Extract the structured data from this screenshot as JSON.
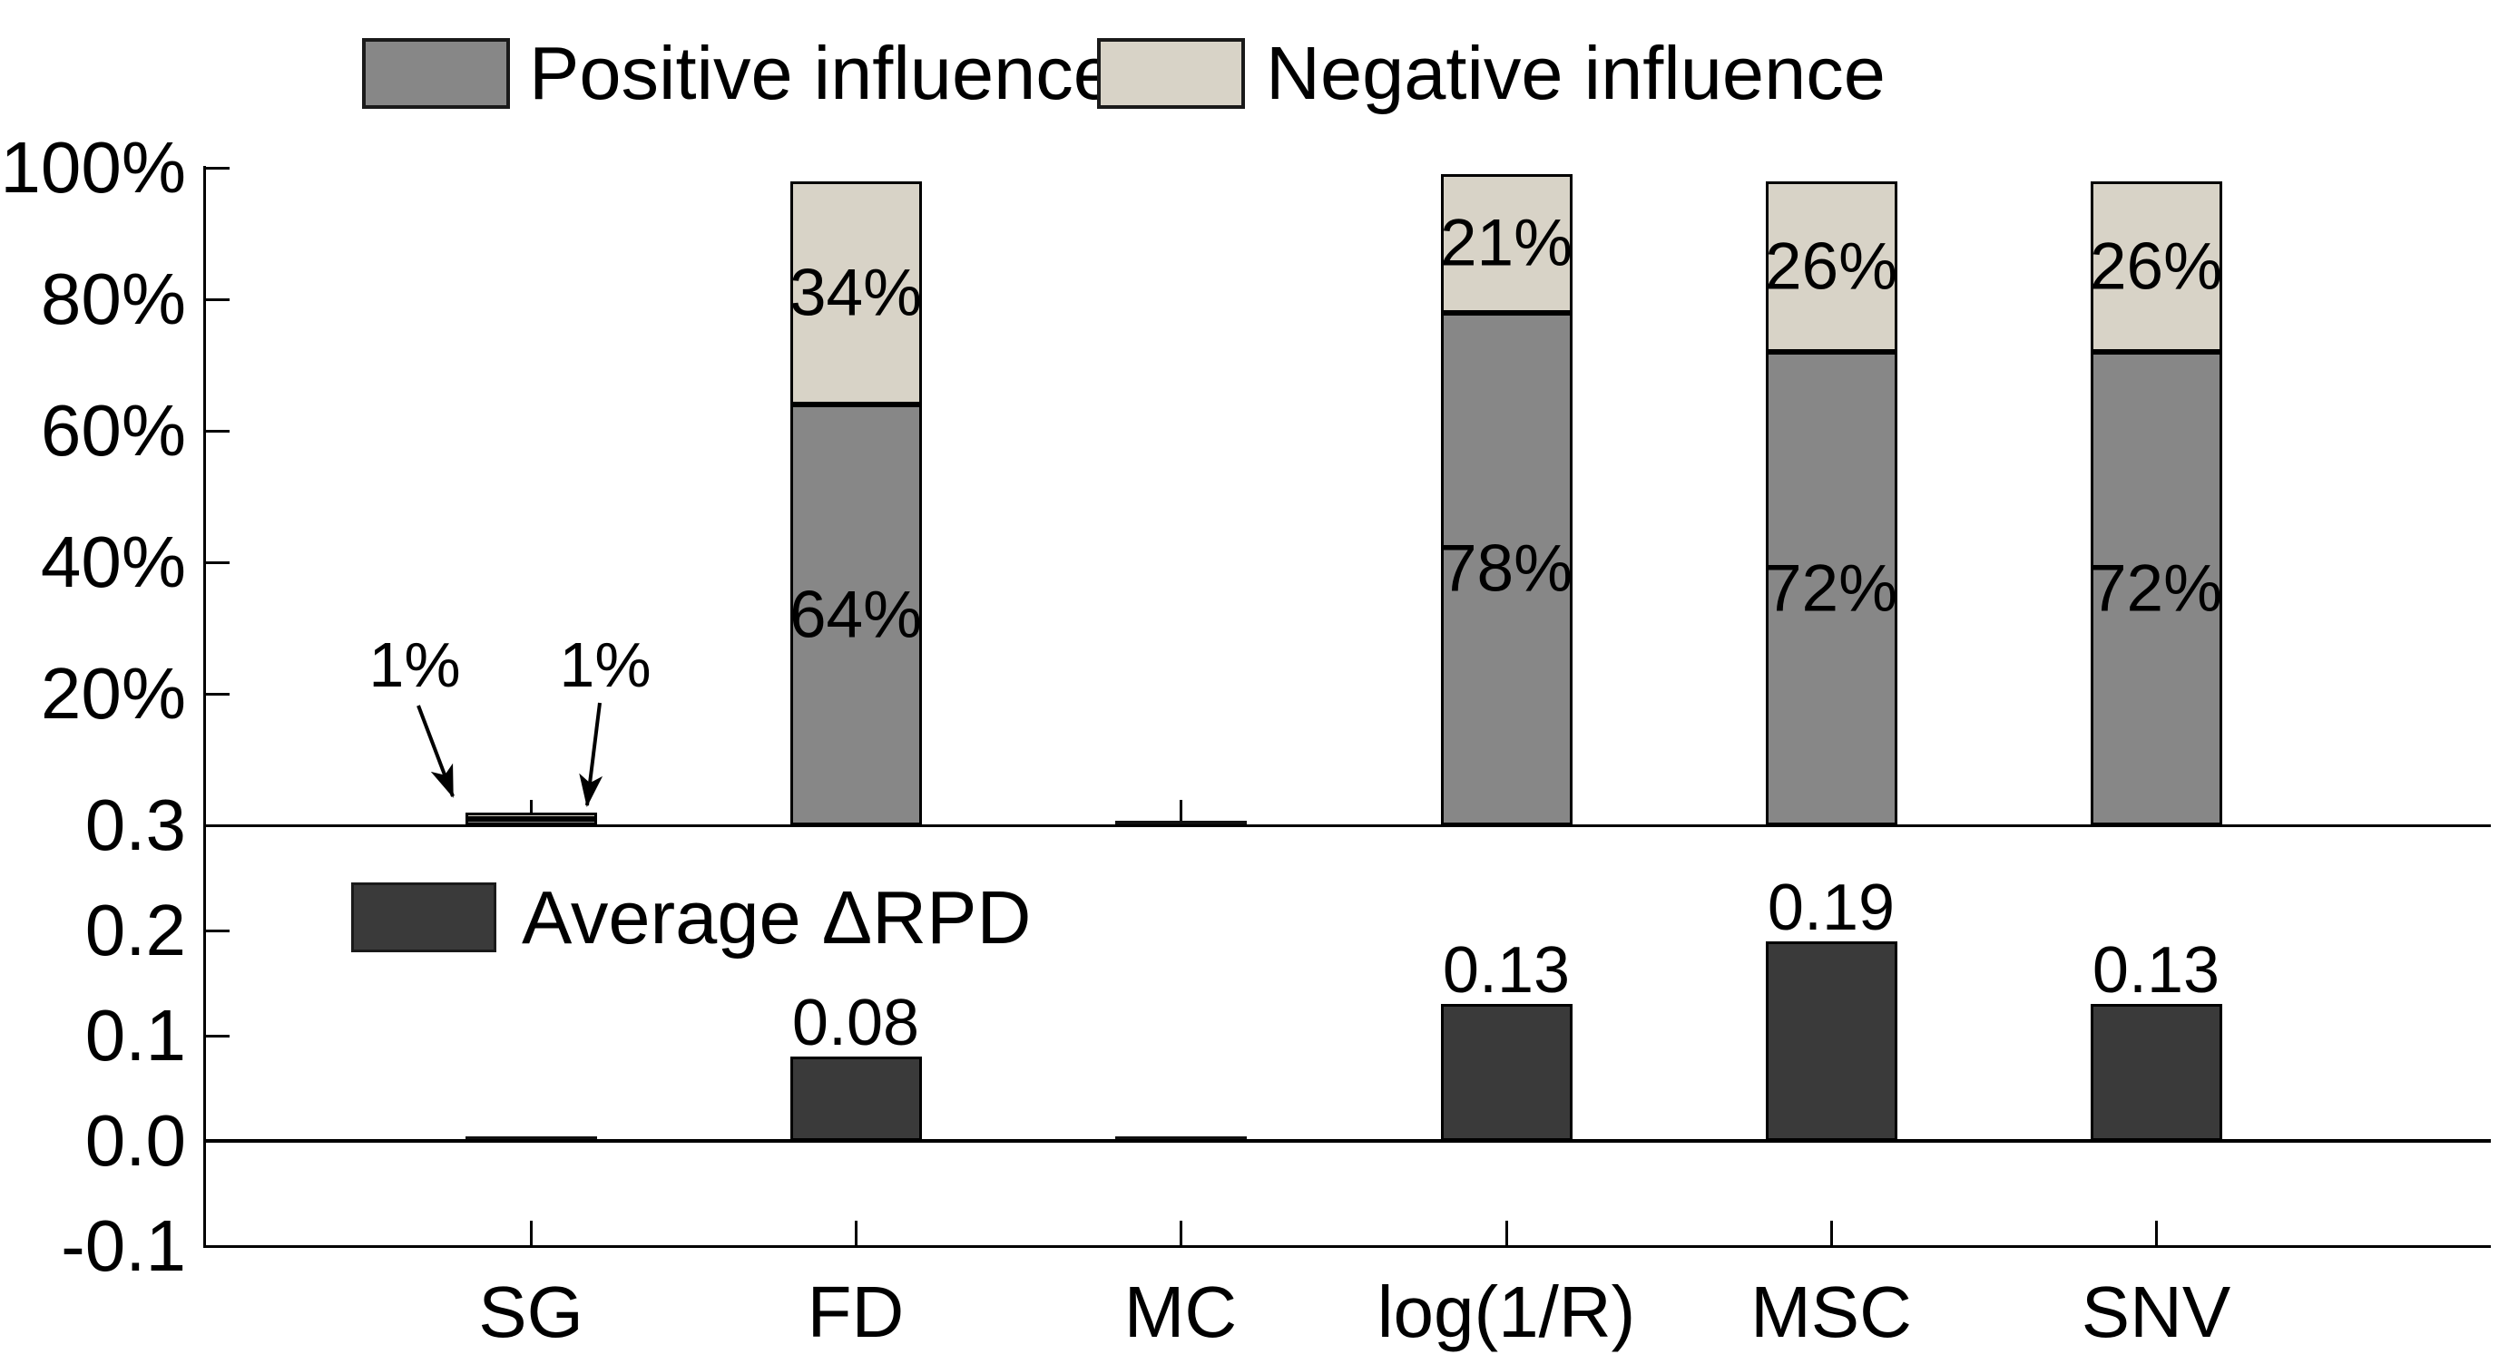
{
  "legend_top": {
    "items": [
      {
        "label": "Positive influence",
        "color": "#878787"
      },
      {
        "label": "Negative influence",
        "color": "#d8d3c7"
      }
    ]
  },
  "legend_bottom": {
    "label": "Average ΔRPD",
    "color": "#3a3a3a"
  },
  "chart_data": [
    {
      "type": "bar",
      "subtype": "stacked",
      "panel": "top",
      "categories": [
        "SG",
        "FD",
        "MC",
        "log(1/R)",
        "MSC",
        "SNV"
      ],
      "series": [
        {
          "name": "Positive influence",
          "color": "#878787",
          "values": [
            1,
            64,
            0,
            78,
            72,
            72
          ],
          "labels": [
            "",
            "64%",
            "",
            "78%",
            "72%",
            "72%"
          ]
        },
        {
          "name": "Negative influence",
          "color": "#d8d3c7",
          "values": [
            1,
            34,
            0,
            21,
            26,
            26
          ],
          "labels": [
            "",
            "34%",
            "",
            "21%",
            "26%",
            "26%"
          ]
        }
      ],
      "ytick_labels": [
        "20%",
        "40%",
        "60%",
        "80%",
        "100%"
      ],
      "ytick_values": [
        20,
        40,
        60,
        80,
        100
      ],
      "ylim": [
        0,
        100
      ],
      "grid": false,
      "legend_position": "top",
      "annotations": [
        {
          "text": "1%",
          "target": "SG negative segment"
        },
        {
          "text": "1%",
          "target": "SG positive segment"
        }
      ]
    },
    {
      "type": "bar",
      "panel": "bottom",
      "categories": [
        "SG",
        "FD",
        "MC",
        "log(1/R)",
        "MSC",
        "SNV"
      ],
      "series": [
        {
          "name": "Average ΔRPD",
          "color": "#3a3a3a",
          "values": [
            0,
            0.08,
            0,
            0.13,
            0.19,
            0.13
          ],
          "labels": [
            "",
            "0.08",
            "",
            "0.13",
            "0.19",
            "0.13"
          ]
        }
      ],
      "ytick_labels": [
        "0.3",
        "0.2",
        "0.1",
        "0.0",
        "-0.1"
      ],
      "ytick_values": [
        0.3,
        0.2,
        0.1,
        0.0,
        -0.1
      ],
      "ylim": [
        -0.1,
        0.3
      ],
      "grid": false,
      "legend_position": "inside-top-left"
    }
  ]
}
